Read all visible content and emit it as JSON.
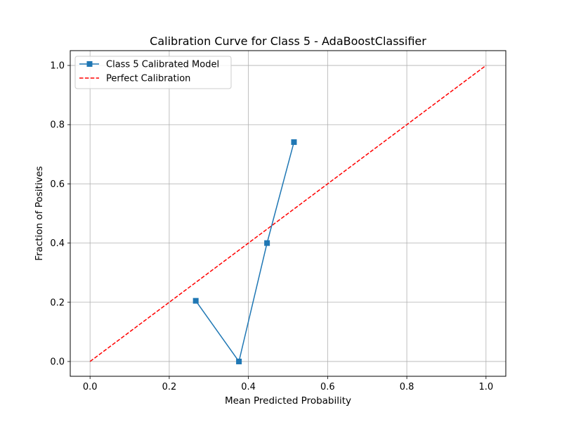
{
  "chart_data": {
    "type": "line",
    "title": "Calibration Curve for Class 5 - AdaBoostClassifier",
    "xlabel": "Mean Predicted Probability",
    "ylabel": "Fraction of Positives",
    "xlim": [
      -0.05,
      1.05
    ],
    "ylim": [
      -0.05,
      1.05
    ],
    "xticks": [
      "0.0",
      "0.2",
      "0.4",
      "0.6",
      "0.8",
      "1.0"
    ],
    "yticks": [
      "0.0",
      "0.2",
      "0.4",
      "0.6",
      "0.8",
      "1.0"
    ],
    "grid": true,
    "legend_position": "top-left",
    "series": [
      {
        "name": "Class 5 Calibrated Model",
        "color": "#1f77b4",
        "style": "solid",
        "marker": "square",
        "x": [
          0.267,
          0.376,
          0.447,
          0.515
        ],
        "y": [
          0.205,
          0.0,
          0.4,
          0.741
        ]
      },
      {
        "name": "Perfect Calibration",
        "color": "#ff0000",
        "style": "dashed",
        "marker": "none",
        "x": [
          0.0,
          1.0
        ],
        "y": [
          0.0,
          1.0
        ]
      }
    ]
  }
}
